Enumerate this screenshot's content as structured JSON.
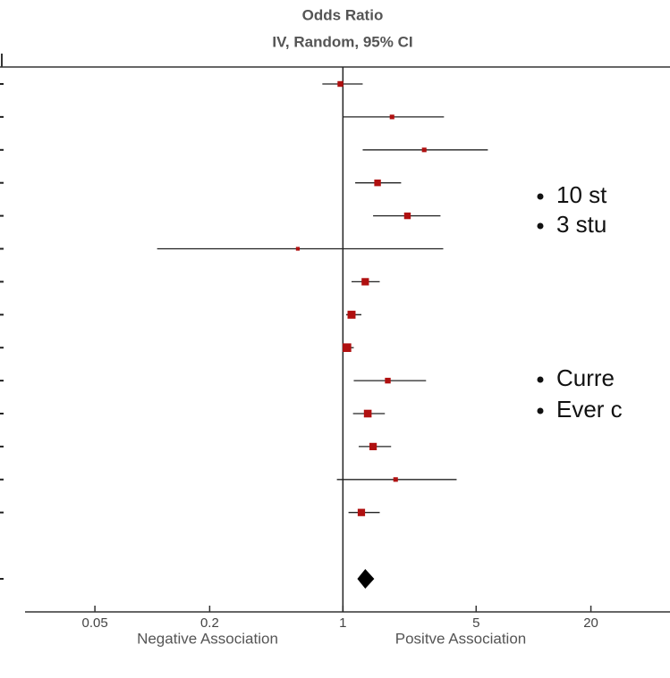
{
  "chart_data": {
    "type": "forest",
    "title": "Odds Ratio",
    "subtitle": "IV, Random, 95% CI",
    "xlabel_left": "Negative Association",
    "xlabel_right": "Positve Association",
    "xscale": "log",
    "xlim": [
      0.0215,
      52
    ],
    "xticks": [
      {
        "value": 0.05,
        "label": "0.05"
      },
      0.2,
      1,
      5,
      20
    ],
    "reference": 1,
    "color": "#b01010",
    "values": [
      0.97,
      1.81,
      2.67,
      1.52,
      2.18,
      0.58,
      1.31,
      1.11,
      1.05,
      1.72,
      1.35,
      1.44,
      1.89,
      1.25
    ],
    "lower": [
      0.78,
      1.0,
      1.27,
      1.16,
      1.44,
      0.106,
      1.11,
      1.04,
      1.0,
      1.14,
      1.13,
      1.21,
      0.93,
      1.07
    ],
    "upper": [
      1.27,
      3.39,
      5.76,
      2.02,
      3.25,
      3.36,
      1.56,
      1.25,
      1.14,
      2.73,
      1.66,
      1.79,
      3.95,
      1.56
    ],
    "weights": [
      4,
      2,
      2,
      6,
      6,
      1,
      8,
      10,
      12,
      4,
      9,
      8,
      2,
      8
    ],
    "overall": {
      "value": 1.31,
      "lower": 1.19,
      "upper": 1.46
    },
    "bullets": [
      "10 st",
      "3 stu",
      "Curre",
      "Ever c"
    ]
  }
}
